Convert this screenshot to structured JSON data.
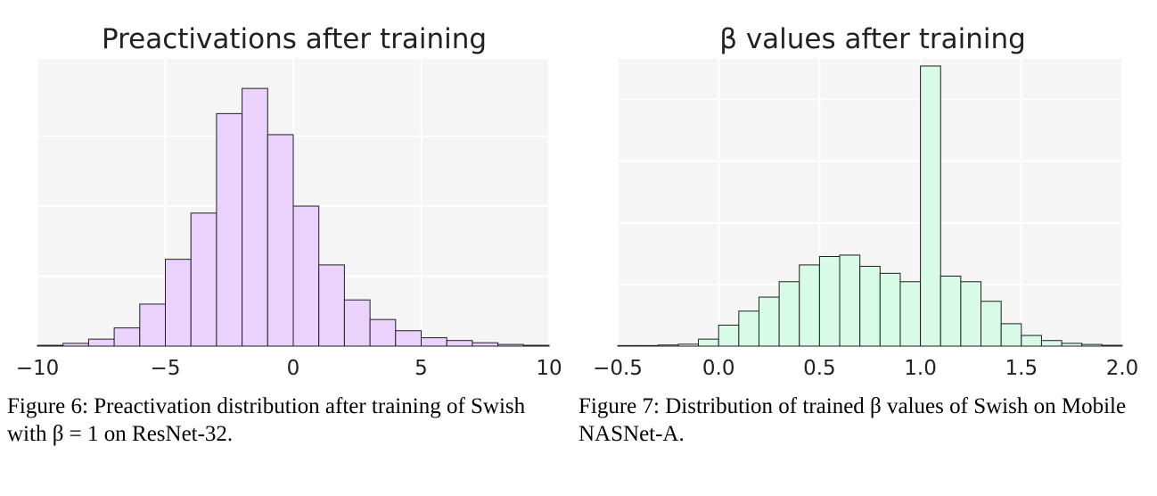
{
  "chart_data": [
    {
      "type": "bar",
      "subtype": "histogram",
      "title": "Preactivations after training",
      "xlabel": "",
      "ylabel": "",
      "xlim": [
        -10,
        10
      ],
      "ylim": [
        0,
        100
      ],
      "x_ticks": [
        -10,
        -5,
        0,
        5,
        10
      ],
      "x_tick_labels": [
        "−10",
        "−5",
        "0",
        "5",
        "10"
      ],
      "y_grid": [
        0,
        25,
        50,
        75
      ],
      "bin_width": 1,
      "bin_starts": [
        -10,
        -9,
        -8,
        -7,
        -6,
        -5,
        -4,
        -3,
        -2,
        -1,
        0,
        1,
        2,
        3,
        4,
        5,
        6,
        7,
        8,
        9
      ],
      "values": [
        0.3,
        1,
        2.5,
        6.5,
        15,
        31,
        47.5,
        83,
        92,
        75.5,
        50,
        29,
        16.5,
        9.5,
        5.5,
        3,
        2,
        1.2,
        0.6,
        0.3
      ],
      "grid": true,
      "colors": {
        "fill": "#ead2fc",
        "edge": "#1f1f1f",
        "background": "#f5f5f5",
        "grid": "#ffffff"
      },
      "caption": "Figure 6: Preactivation distribution after training of Swish with β = 1 on ResNet-32."
    },
    {
      "type": "bar",
      "subtype": "histogram",
      "title": "β values after training",
      "xlabel": "",
      "ylabel": "",
      "xlim": [
        -0.5,
        2.0
      ],
      "ylim": [
        0,
        100
      ],
      "x_ticks": [
        -0.5,
        0.0,
        0.5,
        1.0,
        1.5,
        2.0
      ],
      "x_tick_labels": [
        "−0.5",
        "0.0",
        "0.5",
        "1.0",
        "1.5",
        "2.0"
      ],
      "y_grid": [
        0,
        22,
        44,
        66,
        88
      ],
      "bin_width": 0.1,
      "bin_starts": [
        -0.5,
        -0.4,
        -0.3,
        -0.2,
        -0.1,
        0.0,
        0.1,
        0.2,
        0.3,
        0.4,
        0.5,
        0.6,
        0.7,
        0.8,
        0.9,
        1.0,
        1.1,
        1.2,
        1.3,
        1.4,
        1.5,
        1.6,
        1.7,
        1.8,
        1.9
      ],
      "values": [
        0.2,
        0.2,
        0.4,
        0.7,
        2.5,
        7.5,
        12.5,
        17.5,
        23,
        29,
        32,
        32.5,
        28.5,
        26,
        23,
        100,
        25,
        23,
        16,
        8,
        3.8,
        2,
        1,
        0.6,
        0.3
      ],
      "grid": true,
      "colors": {
        "fill": "#d7fbe6",
        "edge": "#1f1f1f",
        "background": "#f5f5f5",
        "grid": "#ffffff"
      },
      "caption": "Figure 7: Distribution of trained β values of Swish on Mobile NASNet-A."
    }
  ]
}
